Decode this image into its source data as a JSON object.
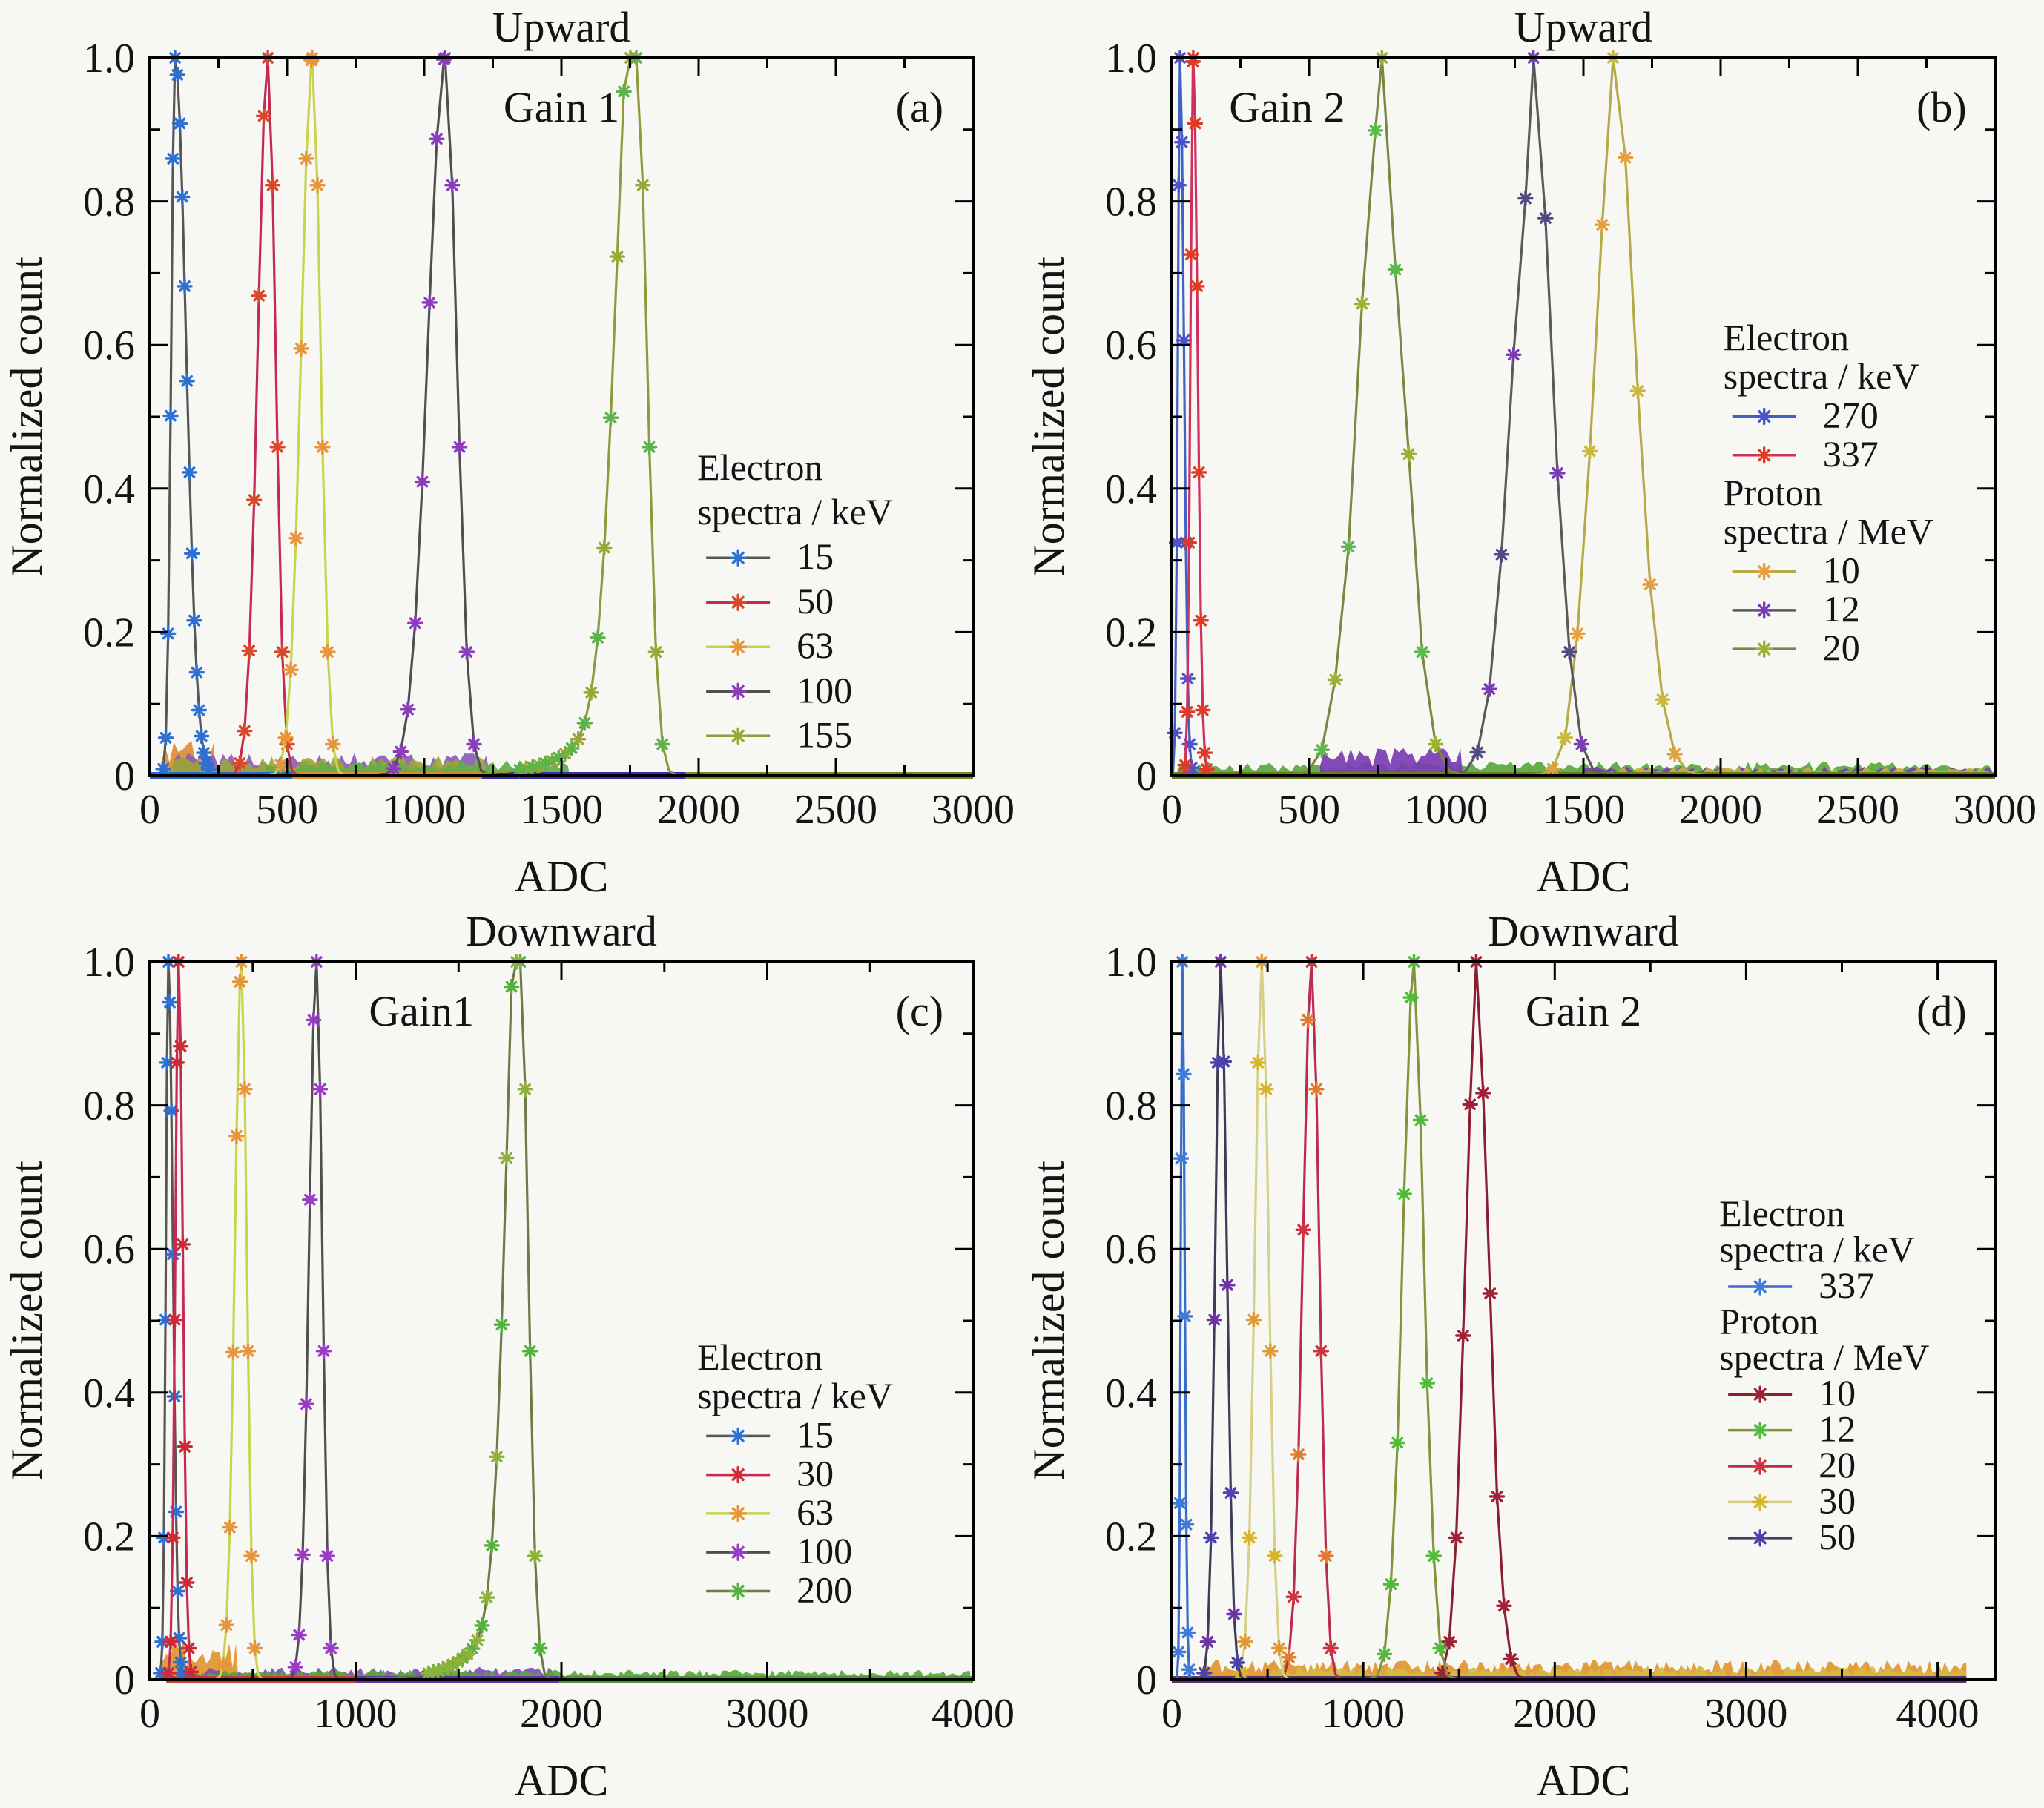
{
  "figure": {
    "background": "#f7f7f4",
    "frame_color": "#000000",
    "text_color": "#141414"
  },
  "chart_data": [
    {
      "id": "a",
      "type": "line",
      "title": "Upward",
      "gain_label": "Gain 1",
      "panel_letter": "(a)",
      "xlabel": "ADC",
      "ylabel": "Normalized count",
      "xlim": [
        0,
        3000
      ],
      "ylim": [
        0,
        1
      ],
      "xticks": [
        0,
        500,
        1000,
        1500,
        2000,
        2500,
        3000
      ],
      "xtick_labels": [
        "0",
        "500",
        "1000",
        "1500",
        "2000",
        "2500",
        "3000"
      ],
      "x_minor_step": 250,
      "yticks": [
        0,
        0.2,
        0.4,
        0.6,
        0.8,
        1.0
      ],
      "ytick_labels": [
        "0",
        "0.2",
        "0.4",
        "0.6",
        "0.8",
        "1.0"
      ],
      "y_minor_step": 0.1,
      "grid": false,
      "gain_x": 0.5,
      "legend": {
        "x": 0.665,
        "y": 0.588,
        "row_h": 0.062,
        "font": 50,
        "blocks": [
          {
            "header": [
              "Electron",
              "spectra / keV"
            ],
            "items": [
              0,
              1,
              2,
              3,
              4
            ]
          }
        ]
      },
      "series": [
        {
          "label": "15",
          "particle": "electron",
          "energy": 15,
          "unit": "keV",
          "peak_adc": 92,
          "peak_norm": 1.0,
          "sigma_l": 14,
          "sigma_r": 40,
          "marker_color": "#2e6fd2",
          "line_color": "#565656"
        },
        {
          "label": "50",
          "particle": "electron",
          "energy": 50,
          "unit": "keV",
          "peak_adc": 430,
          "peak_norm": 1.0,
          "sigma_l": 36,
          "sigma_r": 28,
          "marker_color": "#d8472c",
          "line_color": "#c62a52"
        },
        {
          "label": "63",
          "particle": "electron",
          "energy": 63,
          "unit": "keV",
          "peak_adc": 592,
          "peak_norm": 1.0,
          "sigma_l": 40,
          "sigma_r": 30,
          "marker_color": "#e6953a",
          "line_color": "#c9d44e"
        },
        {
          "label": "100",
          "particle": "electron",
          "energy": 100,
          "unit": "keV",
          "peak_adc": 1076,
          "peak_norm": 1.0,
          "sigma_l": 62,
          "sigma_r": 42,
          "marker_color": "#8a3cba",
          "line_color": "#4f4f4f"
        },
        {
          "label": "155",
          "particle": "electron",
          "energy": 155,
          "unit": "keV",
          "peak_adc": 1773,
          "peak_norm": 1.0,
          "sigma_l": 68,
          "sigma_r": 38,
          "marker_color": "#9aa636",
          "marker_color2": "#5db24a",
          "line_color": "#8e9a3c",
          "tail": {
            "amp": 0.22,
            "len": 130
          }
        }
      ],
      "noise_bands": [
        {
          "color": "#dd8c2e",
          "x0": 40,
          "x1": 240,
          "amp": 0.05
        },
        {
          "color": "#8a5cb4",
          "x0": 90,
          "x1": 1240,
          "amp": 0.032
        },
        {
          "color": "#9aa63a",
          "x0": 60,
          "x1": 1240,
          "amp": 0.028
        },
        {
          "color": "#5fae49",
          "x0": 420,
          "x1": 1530,
          "amp": 0.022
        }
      ],
      "baseline_segments": [
        {
          "color": "#2a66cc",
          "x0": 0,
          "x1": 520
        },
        {
          "color": "#e08a28",
          "x0": 520,
          "x1": 1210
        },
        {
          "color": "#372bb4",
          "x0": 1210,
          "x1": 1950
        },
        {
          "color": "#76871f",
          "x0": 1950,
          "x1": 3000
        }
      ]
    },
    {
      "id": "b",
      "type": "line",
      "title": "Upward",
      "gain_label": "Gain 2",
      "panel_letter": "(b)",
      "xlabel": "ADC",
      "ylabel": "Normalized count",
      "xlim": [
        0,
        3000
      ],
      "ylim": [
        0,
        1
      ],
      "xticks": [
        0,
        500,
        1000,
        1500,
        2000,
        2500,
        3000
      ],
      "xtick_labels": [
        "0",
        "500",
        "1000",
        "1500",
        "2000",
        "2500",
        "3000"
      ],
      "x_minor_step": 250,
      "yticks": [
        0,
        0.2,
        0.4,
        0.6,
        0.8,
        1.0
      ],
      "ytick_labels": [
        "0",
        "0.2",
        "0.4",
        "0.6",
        "0.8",
        "1.0"
      ],
      "y_minor_step": 0.1,
      "grid": false,
      "gain_x": 0.14,
      "legend": {
        "x": 0.67,
        "y": 0.407,
        "row_h": 0.054,
        "font": 50,
        "blocks": [
          {
            "header": [
              "Electron",
              "spectra / keV"
            ],
            "items": [
              0,
              1
            ]
          },
          {
            "header": [
              "Proton",
              "spectra / MeV"
            ],
            "items": [
              2,
              3,
              4
            ]
          }
        ]
      },
      "series": [
        {
          "label": "270",
          "particle": "electron",
          "energy": 270,
          "unit": "keV",
          "peak_adc": 30,
          "peak_norm": 1.0,
          "sigma_l": 8,
          "sigma_r": 14,
          "marker_color": "#4b53cc",
          "line_color": "#3f62c4"
        },
        {
          "label": "337",
          "particle": "electron",
          "energy": 337,
          "unit": "keV",
          "peak_adc": 78,
          "peak_norm": 1.0,
          "sigma_l": 10,
          "sigma_r": 16,
          "marker_color": "#df3a28",
          "line_color": "#cf2f62"
        },
        {
          "label": "10",
          "particle": "proton",
          "energy": 10,
          "unit": "MeV",
          "peak_adc": 1608,
          "peak_norm": 1.0,
          "sigma_l": 72,
          "sigma_r": 85,
          "marker_color": "#e59f3f",
          "marker_color2": "#c9b83c",
          "line_color": "#b3ab45",
          "jitter": 0.18
        },
        {
          "label": "12",
          "particle": "proton",
          "energy": 12,
          "unit": "MeV",
          "peak_adc": 1318,
          "peak_norm": 1.0,
          "sigma_l": 78,
          "sigma_r": 70,
          "marker_color": "#7a3cb2",
          "marker_color2": "#514a80",
          "line_color": "#5a5a5a",
          "jitter": 0.18
        },
        {
          "label": "20",
          "particle": "proton",
          "energy": 20,
          "unit": "MeV",
          "peak_adc": 766,
          "peak_norm": 1.0,
          "sigma_l": 85,
          "sigma_r": 78,
          "marker_color": "#9ab232",
          "marker_color2": "#5cb84a",
          "line_color": "#7d8742",
          "jitter": 0.15
        }
      ],
      "noise_bands": [
        {
          "color": "#58a83c",
          "x0": 20,
          "x1": 2990,
          "amp": 0.02
        },
        {
          "color": "#7a3cb2",
          "x0": 540,
          "x1": 1060,
          "amp": 0.04
        },
        {
          "color": "#7a3cb2",
          "x0": 1500,
          "x1": 2990,
          "amp": 0.013
        },
        {
          "color": "#c4b23c",
          "x0": 1600,
          "x1": 2990,
          "amp": 0.012
        }
      ],
      "baseline_segments": [
        {
          "color": "#6b7a1e",
          "x0": 0,
          "x1": 3000
        }
      ]
    },
    {
      "id": "c",
      "type": "line",
      "title": "Downward",
      "gain_label": "Gain1",
      "panel_letter": "(c)",
      "xlabel": "ADC",
      "ylabel": "Normalized count",
      "xlim": [
        0,
        4000
      ],
      "ylim": [
        0,
        1
      ],
      "xticks": [
        0,
        1000,
        2000,
        3000,
        4000
      ],
      "xtick_labels": [
        "0",
        "1000",
        "2000",
        "3000",
        "4000"
      ],
      "x_minor_step": 500,
      "yticks": [
        0,
        0.2,
        0.4,
        0.6,
        0.8,
        1.0
      ],
      "ytick_labels": [
        "0",
        "0.2",
        "0.4",
        "0.6",
        "0.8",
        "1.0"
      ],
      "y_minor_step": 0.1,
      "grid": false,
      "gain_x": 0.33,
      "legend": {
        "x": 0.665,
        "y": 0.568,
        "row_h": 0.054,
        "font": 50,
        "blocks": [
          {
            "header": [
              "Electron",
              "spectra / keV"
            ],
            "items": [
              0,
              1,
              2,
              3,
              4
            ]
          }
        ]
      },
      "series": [
        {
          "label": "15",
          "particle": "electron",
          "energy": 15,
          "unit": "keV",
          "peak_adc": 90,
          "peak_norm": 1.0,
          "sigma_l": 12,
          "sigma_r": 22,
          "marker_color": "#2e6fd2",
          "line_color": "#565656"
        },
        {
          "label": "30",
          "particle": "electron",
          "energy": 30,
          "unit": "keV",
          "peak_adc": 140,
          "peak_norm": 1.0,
          "sigma_l": 16,
          "sigma_r": 20,
          "marker_color": "#cc2a38",
          "line_color": "#c62a52"
        },
        {
          "label": "63",
          "particle": "electron",
          "energy": 63,
          "unit": "keV",
          "peak_adc": 445,
          "peak_norm": 1.0,
          "sigma_l": 32,
          "sigma_r": 26,
          "marker_color": "#e6953a",
          "line_color": "#c9d44e"
        },
        {
          "label": "100",
          "particle": "electron",
          "energy": 100,
          "unit": "keV",
          "peak_adc": 810,
          "peak_norm": 1.0,
          "sigma_l": 36,
          "sigma_r": 28,
          "marker_color": "#983cc4",
          "line_color": "#4f4f4f"
        },
        {
          "label": "200",
          "particle": "electron",
          "energy": 200,
          "unit": "keV",
          "peak_adc": 1800,
          "peak_norm": 1.0,
          "sigma_l": 65,
          "sigma_r": 38,
          "marker_color": "#54b23c",
          "marker_color2": "#8cb23c",
          "line_color": "#6f7a46",
          "tail": {
            "amp": 0.22,
            "len": 140
          }
        }
      ],
      "noise_bands": [
        {
          "color": "#e0952e",
          "x0": 50,
          "x1": 430,
          "amp": 0.055
        },
        {
          "color": "#7a50b2",
          "x0": 130,
          "x1": 1980,
          "amp": 0.018
        },
        {
          "color": "#58a83c",
          "x0": 160,
          "x1": 3990,
          "amp": 0.014
        }
      ],
      "baseline_segments": [
        {
          "color": "#cc3a20",
          "x0": 80,
          "x1": 1000
        },
        {
          "color": "#6a30a8",
          "x0": 1000,
          "x1": 1990
        },
        {
          "color": "#4a9a30",
          "x0": 1990,
          "x1": 4000
        }
      ]
    },
    {
      "id": "d",
      "type": "line",
      "title": "Downward",
      "gain_label": "Gain 2",
      "panel_letter": "(d)",
      "xlabel": "ADC",
      "ylabel": "Normalized count",
      "xlim": [
        0,
        4300
      ],
      "ylim": [
        0,
        1
      ],
      "xticks": [
        0,
        1000,
        2000,
        3000,
        4000
      ],
      "xtick_labels": [
        "0",
        "1000",
        "2000",
        "3000",
        "4000"
      ],
      "x_minor_step": 500,
      "yticks": [
        0,
        0.2,
        0.4,
        0.6,
        0.8,
        1.0
      ],
      "ytick_labels": [
        "0",
        "0.2",
        "0.4",
        "0.6",
        "0.8",
        "1.0"
      ],
      "y_minor_step": 0.1,
      "grid": false,
      "gain_x": 0.5,
      "legend": {
        "x": 0.665,
        "y": 0.368,
        "row_h": 0.05,
        "font": 46,
        "blocks": [
          {
            "header": [
              "Electron",
              "spectra / keV"
            ],
            "items": [
              0
            ]
          },
          {
            "header": [
              "Proton",
              "spectra / MeV"
            ],
            "items": [
              1,
              2,
              3,
              4,
              5
            ]
          }
        ]
      },
      "series": [
        {
          "label": "337",
          "particle": "electron",
          "energy": 337,
          "unit": "keV",
          "peak_adc": 55,
          "peak_norm": 1.0,
          "sigma_l": 8,
          "sigma_r": 12,
          "marker_color": "#3f7ad8",
          "line_color": "#3a6cc8"
        },
        {
          "label": "10",
          "particle": "proton",
          "energy": 10,
          "unit": "MeV",
          "peak_adc": 1590,
          "peak_norm": 1.0,
          "sigma_l": 58,
          "sigma_r": 68,
          "marker_color": "#9e2136",
          "line_color": "#8a1e30",
          "jitter": 0.1
        },
        {
          "label": "12",
          "particle": "proton",
          "energy": 12,
          "unit": "MeV",
          "peak_adc": 1265,
          "peak_norm": 1.0,
          "sigma_l": 60,
          "sigma_r": 55,
          "marker_color": "#52ba38",
          "line_color": "#86933c",
          "jitter": 0.1
        },
        {
          "label": "20",
          "particle": "proton",
          "energy": 20,
          "unit": "MeV",
          "peak_adc": 730,
          "peak_norm": 1.0,
          "sigma_l": 45,
          "sigma_r": 40,
          "marker_color": "#cc3340",
          "marker_color2": "#e07830",
          "line_color": "#bc2a4e"
        },
        {
          "label": "30",
          "particle": "proton",
          "energy": 30,
          "unit": "MeV",
          "peak_adc": 470,
          "peak_norm": 1.0,
          "sigma_l": 36,
          "sigma_r": 36,
          "marker_color": "#d8b428",
          "marker_color2": "#e09a34",
          "line_color": "#d6d089"
        },
        {
          "label": "50",
          "particle": "proton",
          "energy": 50,
          "unit": "MeV",
          "peak_adc": 255,
          "peak_norm": 1.0,
          "sigma_l": 28,
          "sigma_r": 32,
          "marker_color": "#4a42aa",
          "marker_color2": "#6a35a0",
          "line_color": "#3c3c55"
        }
      ],
      "noise_bands": [
        {
          "color": "#e0952e",
          "x0": 150,
          "x1": 4150,
          "amp": 0.028
        },
        {
          "color": "#d4bc3e",
          "x0": 500,
          "x1": 4150,
          "amp": 0.018
        }
      ],
      "baseline_segments": [
        {
          "color": "#5a3070",
          "x0": 0,
          "x1": 4150
        },
        {
          "color": "#7a2838",
          "x0": 600,
          "x1": 4150,
          "thin": true
        }
      ]
    }
  ]
}
